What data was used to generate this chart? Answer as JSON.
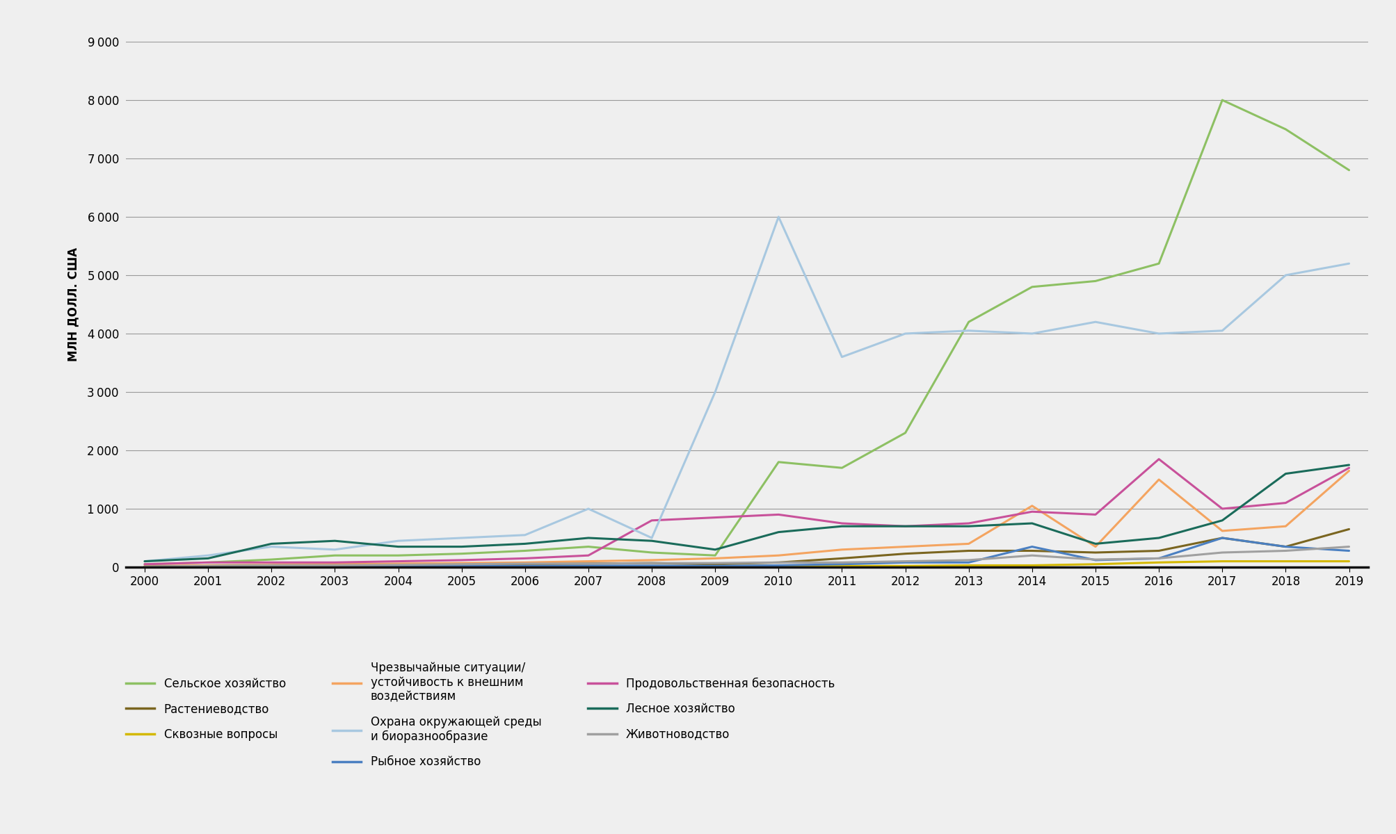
{
  "years": [
    2000,
    2001,
    2002,
    2003,
    2004,
    2005,
    2006,
    2007,
    2008,
    2009,
    2010,
    2011,
    2012,
    2013,
    2014,
    2015,
    2016,
    2017,
    2018,
    2019
  ],
  "series": {
    "agriculture": {
      "label": "Сельское хозяйство",
      "color": "#8dc063",
      "linewidth": 2.2,
      "values": [
        50,
        80,
        130,
        200,
        200,
        230,
        280,
        350,
        250,
        200,
        1800,
        1700,
        2300,
        4200,
        4800,
        4900,
        5200,
        8000,
        7500,
        6800
      ]
    },
    "emergency": {
      "label": "Чрезвычайные ситуации/\nустойчивость к внешним\nвоздействиям",
      "color": "#f4a460",
      "linewidth": 2.2,
      "values": [
        20,
        30,
        40,
        50,
        60,
        70,
        80,
        100,
        120,
        150,
        200,
        300,
        350,
        400,
        1050,
        350,
        1500,
        620,
        700,
        1650
      ]
    },
    "food_security": {
      "label": "Продовольственная безопасность",
      "color": "#c8519a",
      "linewidth": 2.2,
      "values": [
        50,
        80,
        80,
        80,
        100,
        120,
        150,
        200,
        800,
        850,
        900,
        750,
        700,
        750,
        950,
        900,
        1850,
        1000,
        1100,
        1700
      ]
    },
    "plant_growing": {
      "label": "Растениеводство",
      "color": "#7a6520",
      "linewidth": 2.2,
      "values": [
        10,
        20,
        30,
        30,
        30,
        40,
        50,
        60,
        70,
        50,
        80,
        150,
        230,
        280,
        280,
        250,
        280,
        500,
        350,
        650
      ]
    },
    "environment": {
      "label": "Охрана окружающей среды\nи биоразнообразие",
      "color": "#a8c8e0",
      "linewidth": 2.2,
      "values": [
        100,
        200,
        350,
        300,
        450,
        500,
        550,
        1000,
        500,
        3000,
        6000,
        3600,
        4000,
        4050,
        4000,
        4200,
        4000,
        4050,
        5000,
        5200
      ]
    },
    "forestry": {
      "label": "Лесное хозяйство",
      "color": "#1a6b5a",
      "linewidth": 2.2,
      "values": [
        100,
        150,
        400,
        450,
        350,
        350,
        400,
        500,
        450,
        300,
        600,
        700,
        700,
        700,
        750,
        400,
        500,
        800,
        1600,
        1750
      ]
    },
    "cross_cutting": {
      "label": "Сквозные вопросы",
      "color": "#d4b800",
      "linewidth": 2.2,
      "values": [
        5,
        10,
        10,
        10,
        10,
        10,
        10,
        10,
        15,
        15,
        20,
        20,
        20,
        30,
        30,
        50,
        80,
        100,
        100,
        100
      ]
    },
    "fishery": {
      "label": "Рыбное хозяйство",
      "color": "#4a7fc1",
      "linewidth": 2.2,
      "values": [
        5,
        10,
        10,
        10,
        20,
        20,
        20,
        25,
        25,
        20,
        30,
        50,
        80,
        80,
        350,
        120,
        150,
        500,
        350,
        280
      ]
    },
    "livestock": {
      "label": "Животноводство",
      "color": "#a0a0a0",
      "linewidth": 2.2,
      "values": [
        10,
        20,
        30,
        30,
        40,
        50,
        60,
        60,
        70,
        70,
        80,
        80,
        100,
        120,
        200,
        130,
        150,
        250,
        280,
        350
      ]
    }
  },
  "ylabel": "МЛН ДОЛЛ. США",
  "ylim": [
    0,
    9000
  ],
  "yticks": [
    0,
    1000,
    2000,
    3000,
    4000,
    5000,
    6000,
    7000,
    8000,
    9000
  ],
  "ytick_top": 9000,
  "background_color": "#efefef",
  "plot_bg_color": "#efefef",
  "grid_color": "#999999"
}
